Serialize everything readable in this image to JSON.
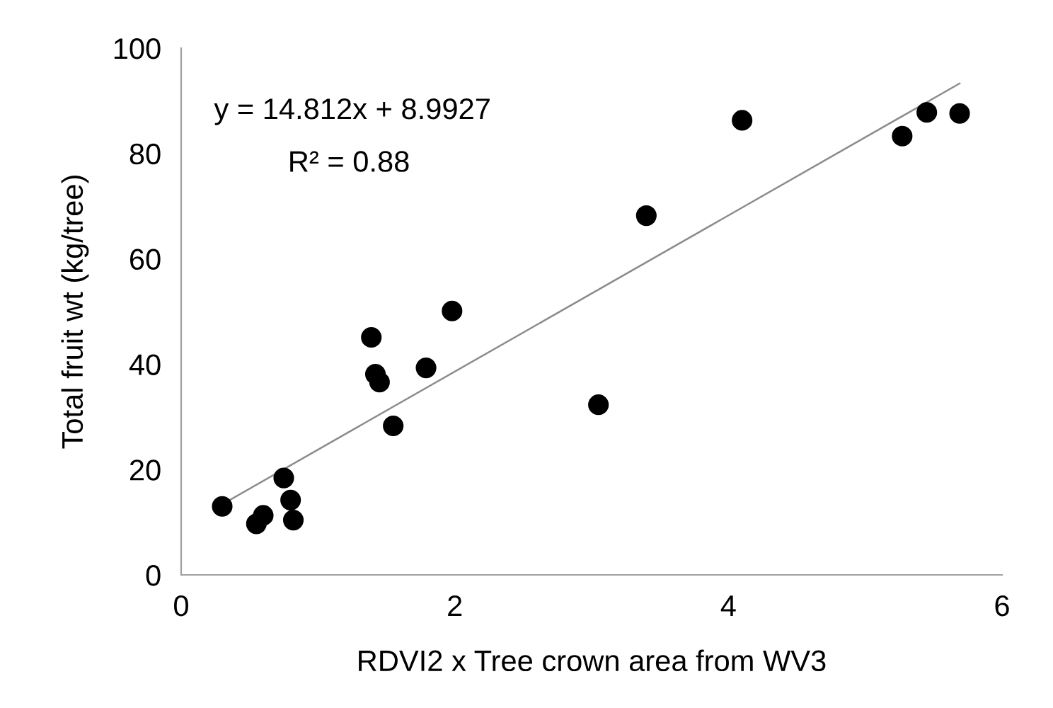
{
  "chart_data": {
    "type": "scatter",
    "xlabel": "RDVI2 x Tree crown area from WV3",
    "ylabel": "Total fruit wt (kg/tree)",
    "xlim": [
      0,
      6
    ],
    "xticks": [
      0,
      2,
      4,
      6
    ],
    "ylim": [
      0,
      100
    ],
    "yticks": [
      0,
      20,
      40,
      60,
      80,
      100
    ],
    "grid": false,
    "marker": "circle",
    "annotations": [
      "y = 14.812x + 8.9927",
      "R² = 0.88"
    ],
    "series": [
      {
        "color": "#000000",
        "x": [
          0.3,
          0.55,
          0.6,
          0.75,
          0.8,
          0.82,
          1.39,
          1.42,
          1.45,
          1.55,
          1.79,
          1.98,
          3.05,
          3.4,
          4.1,
          5.27,
          5.45,
          5.69
        ],
        "values": [
          13.0,
          9.7,
          11.3,
          18.4,
          14.2,
          10.4,
          45.1,
          38.1,
          36.6,
          28.3,
          39.3,
          50.1,
          32.3,
          68.2,
          86.3,
          83.3,
          87.8,
          87.6
        ]
      },
      {
        "type": "line",
        "color": "#8c8c8c",
        "x": [
          0.3,
          5.69
        ],
        "values": [
          13.4,
          93.3
        ],
        "marker": "none",
        "line_style": "solid"
      }
    ]
  }
}
